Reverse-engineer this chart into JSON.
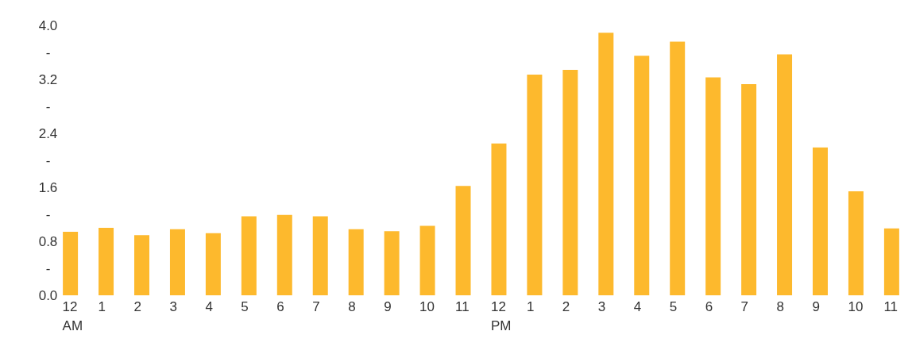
{
  "chart_data": {
    "type": "bar",
    "categories": [
      "12 AM",
      "1",
      "2",
      "3",
      "4",
      "5",
      "6",
      "7",
      "8",
      "9",
      "10",
      "11",
      "12 PM",
      "1",
      "2",
      "3",
      "4",
      "5",
      "6",
      "7",
      "8",
      "9",
      "10",
      "11"
    ],
    "values": [
      0.94,
      1.0,
      0.89,
      0.98,
      0.92,
      1.17,
      1.19,
      1.17,
      0.98,
      0.95,
      1.03,
      1.62,
      2.25,
      3.27,
      3.34,
      3.89,
      3.55,
      3.76,
      3.23,
      3.13,
      3.57,
      2.19,
      1.54,
      0.99
    ],
    "color": "#fdb92d",
    "ylim": [
      0,
      4.0
    ],
    "yticks": [
      {
        "value": 0,
        "label": "0.0"
      },
      {
        "value": 0.4,
        "label": "-"
      },
      {
        "value": 0.8,
        "label": "0.8"
      },
      {
        "value": 1.2,
        "label": "-"
      },
      {
        "value": 1.6,
        "label": "1.6"
      },
      {
        "value": 2.0,
        "label": "-"
      },
      {
        "value": 2.4,
        "label": "2.4"
      },
      {
        "value": 2.8,
        "label": "-"
      },
      {
        "value": 3.2,
        "label": "3.2"
      },
      {
        "value": 3.6,
        "label": "-"
      },
      {
        "value": 4.0,
        "label": "4.0"
      }
    ],
    "grid": false
  }
}
